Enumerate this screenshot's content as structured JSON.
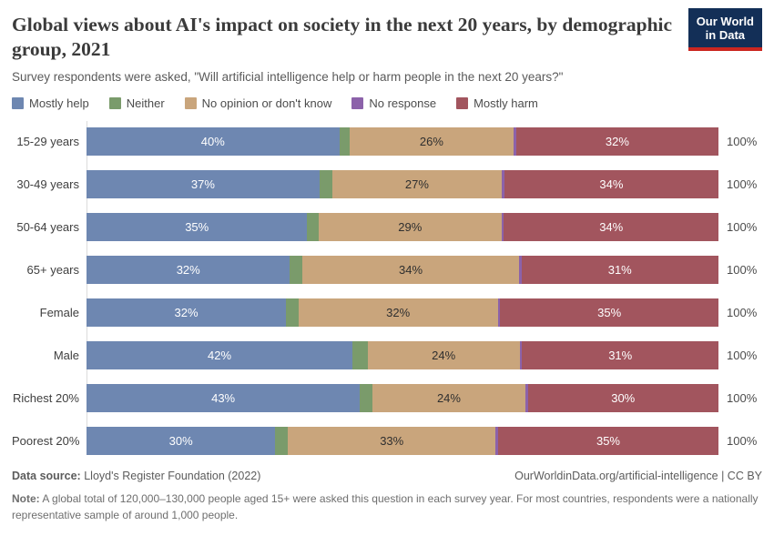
{
  "logo": {
    "line1": "Our World",
    "line2": "in Data",
    "bg_color": "#132f57",
    "accent_color": "#cb2620"
  },
  "header": {
    "title": "Global views about AI's impact on society in the next 20 years, by demographic group, 2021",
    "subtitle": "Survey respondents were asked, \"Will artificial intelligence help or harm people in the next 20 years?\""
  },
  "legend": [
    {
      "label": "Mostly help",
      "color": "#6e87b1"
    },
    {
      "label": "Neither",
      "color": "#7a9b6b"
    },
    {
      "label": "No opinion or don't know",
      "color": "#c9a57c"
    },
    {
      "label": "No response",
      "color": "#8c62aa"
    },
    {
      "label": "Mostly harm",
      "color": "#a2555e"
    }
  ],
  "chart_data": {
    "type": "bar",
    "stacked": true,
    "orientation": "horizontal",
    "xlim": [
      0,
      100
    ],
    "total_label": "100%",
    "categories": [
      "15-29 years",
      "30-49 years",
      "50-64 years",
      "65+ years",
      "Female",
      "Male",
      "Richest 20%",
      "Poorest 20%"
    ],
    "series": [
      {
        "name": "Mostly help",
        "color": "#6e87b1",
        "show_labels": true,
        "label_color": "#ffffff",
        "values": [
          40,
          37,
          35,
          32,
          32,
          42,
          43,
          30
        ]
      },
      {
        "name": "Neither",
        "color": "#7a9b6b",
        "show_labels": false,
        "label_color": "#2f2f2f",
        "values": [
          1.6,
          2,
          1.8,
          2,
          2,
          2.4,
          2,
          2
        ]
      },
      {
        "name": "No opinion or don't know",
        "color": "#c9a57c",
        "show_labels": true,
        "label_color": "#2f2f2f",
        "values": [
          26,
          27,
          29,
          34,
          32,
          24,
          24,
          33
        ]
      },
      {
        "name": "No response",
        "color": "#8c62aa",
        "show_labels": false,
        "label_color": "#ffffff",
        "values": [
          0.4,
          0.4,
          0.4,
          0.4,
          0.4,
          0.4,
          0.4,
          0.4
        ]
      },
      {
        "name": "Mostly harm",
        "color": "#a2555e",
        "show_labels": true,
        "label_color": "#ffffff",
        "values": [
          32,
          34,
          34,
          31,
          35,
          31,
          30,
          35
        ]
      }
    ]
  },
  "footer": {
    "source_label": "Data source:",
    "source_value": "Lloyd's Register Foundation (2022)",
    "attribution": "OurWorldinData.org/artificial-intelligence | CC BY",
    "note_label": "Note:",
    "note_text": "A global total of 120,000–130,000 people aged 15+ were asked this question in each survey year. For most countries, respondents were a nationally representative sample of around 1,000 people."
  }
}
